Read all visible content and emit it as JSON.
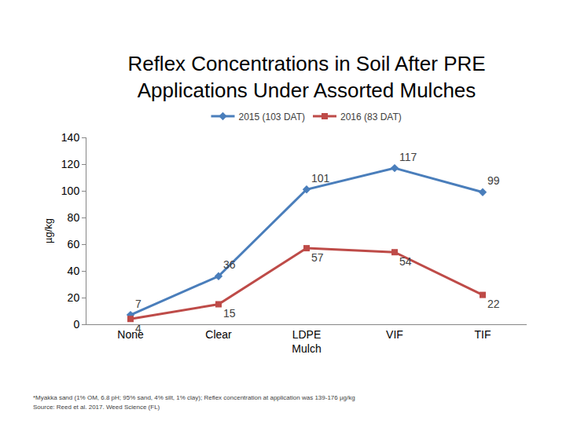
{
  "chart_data": {
    "type": "line",
    "title": "Reflex Concentrations in Soil After PRE\nApplications Under Assorted Mulches",
    "y_label": "µg/kg",
    "categories": [
      "None",
      "Clear",
      "LDPE\nMulch",
      "VIF",
      "TIF"
    ],
    "series": [
      {
        "name": "2015 (103 DAT)",
        "color": "#4a7ebb",
        "marker": "diamond",
        "line_style": "solid",
        "values": [
          7,
          36,
          101,
          117,
          99
        ]
      },
      {
        "name": "2016 (83 DAT)",
        "color": "#be4b48",
        "marker": "square",
        "line_style": "solid",
        "values": [
          4,
          15,
          57,
          54,
          22
        ]
      }
    ],
    "ylim": [
      0,
      140
    ],
    "yticks": [
      0,
      20,
      40,
      60,
      80,
      100,
      120,
      140
    ],
    "grid": false,
    "legend": "top",
    "data_labels": true,
    "annotations": [
      "*Myakka sand (1% OM, 6.8 pH; 95% sand, 4% silt, 1% clay); Reflex concentration at application was 139-176 µg/kg",
      "Source: Reed et al. 2017. Weed Science (FL)"
    ]
  }
}
